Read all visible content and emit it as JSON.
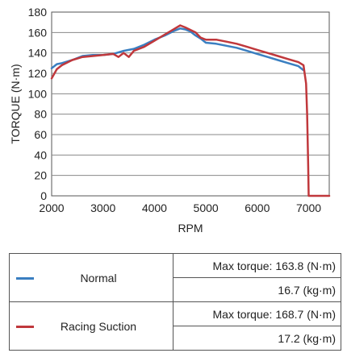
{
  "chart_data": {
    "type": "line",
    "title": "",
    "xlabel": "RPM",
    "ylabel": "TORQUE (N·m)",
    "xlim": [
      2000,
      7400
    ],
    "ylim": [
      0,
      180
    ],
    "xticks": [
      2000,
      3000,
      4000,
      5000,
      6000,
      7000
    ],
    "yticks": [
      0,
      20,
      40,
      60,
      80,
      100,
      120,
      140,
      160,
      180
    ],
    "grid": "horizontal",
    "series": [
      {
        "name": "Normal",
        "color": "#3a7fc1",
        "x": [
          2000,
          2100,
          2200,
          2400,
          2600,
          2800,
          3000,
          3200,
          3400,
          3600,
          3800,
          4000,
          4200,
          4400,
          4500,
          4600,
          4700,
          4800,
          4900,
          5000,
          5200,
          5400,
          5600,
          5800,
          6000,
          6200,
          6400,
          6600,
          6800,
          6900
        ],
        "y": [
          125,
          129,
          130,
          133,
          137,
          138,
          138,
          139,
          142,
          144,
          148,
          153,
          157,
          162,
          164,
          163,
          161,
          157,
          154,
          150,
          149,
          147,
          145,
          142,
          139,
          136,
          133,
          130,
          127,
          123
        ]
      },
      {
        "name": "Racing Suction",
        "color": "#c0383c",
        "x": [
          2000,
          2100,
          2200,
          2400,
          2600,
          2800,
          3000,
          3200,
          3300,
          3400,
          3500,
          3600,
          3800,
          4000,
          4200,
          4400,
          4500,
          4600,
          4800,
          4900,
          5000,
          5200,
          5400,
          5600,
          5800,
          6000,
          6200,
          6400,
          6600,
          6800,
          6900,
          6950,
          6970,
          6990,
          7000,
          7400
        ],
        "y": [
          115,
          124,
          128,
          133,
          136,
          137,
          138,
          139,
          136,
          140,
          136,
          142,
          146,
          152,
          158,
          164,
          167,
          165,
          160,
          155,
          153,
          153,
          151,
          149,
          146,
          143,
          140,
          137,
          134,
          131,
          128,
          110,
          80,
          30,
          0,
          0
        ]
      }
    ]
  },
  "legend": {
    "normal": {
      "name": "Normal",
      "max_torque_nm": "Max torque: 163.8 (N·m)",
      "max_torque_kgm": "16.7 (kg·m)"
    },
    "racing": {
      "name": "Racing Suction",
      "max_torque_nm": "Max torque: 168.7 (N·m)",
      "max_torque_kgm": "17.2 (kg·m)"
    }
  }
}
